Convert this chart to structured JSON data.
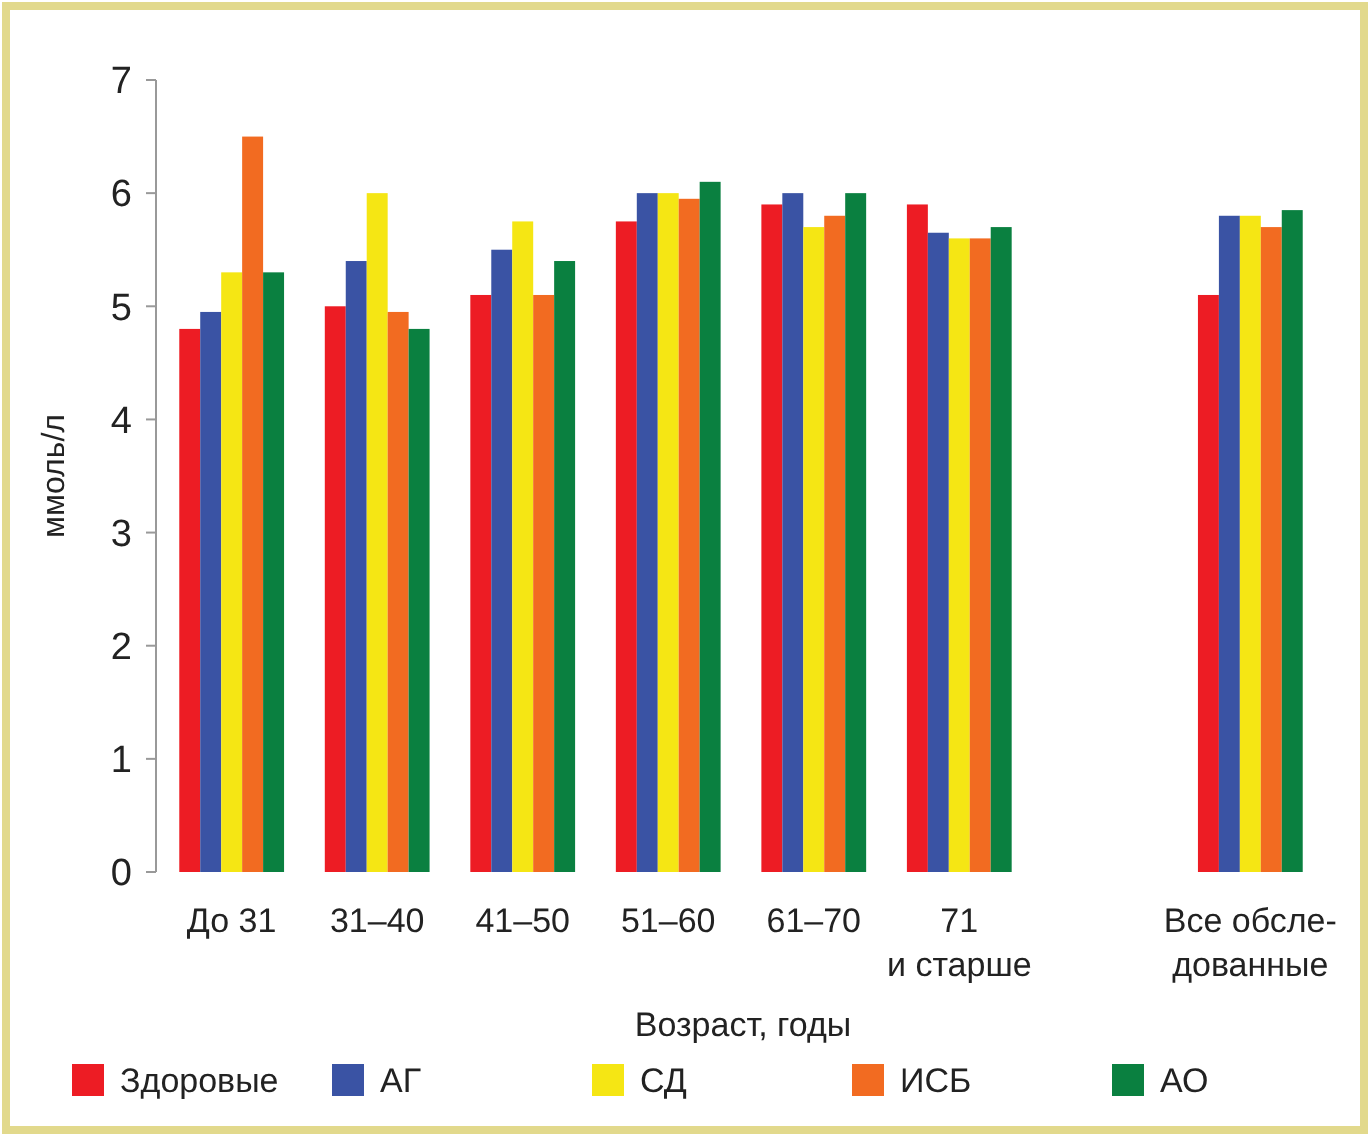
{
  "chart_data": {
    "type": "bar",
    "xlabel": "Возраст, годы",
    "ylabel": "ммоль/л",
    "categories": [
      "До 31",
      "31–40",
      "41–50",
      "51–60",
      "61–70",
      "71\nи старше",
      null,
      "Все обсле-\nдованные"
    ],
    "series": [
      {
        "name": "Здоровые",
        "color": "#ed1c24",
        "values": [
          4.8,
          5.0,
          5.1,
          5.75,
          5.9,
          5.9,
          null,
          5.1
        ]
      },
      {
        "name": "АГ",
        "color": "#3a53a4",
        "values": [
          4.95,
          5.4,
          5.5,
          6.0,
          6.0,
          5.65,
          null,
          5.8
        ]
      },
      {
        "name": "СД",
        "color": "#f5e614",
        "values": [
          5.3,
          6.0,
          5.75,
          6.0,
          5.7,
          5.6,
          null,
          5.8
        ]
      },
      {
        "name": "ИСБ",
        "color": "#f26b21",
        "values": [
          6.5,
          4.95,
          5.1,
          5.95,
          5.8,
          5.6,
          null,
          5.7
        ]
      },
      {
        "name": "АО",
        "color": "#0a8040",
        "values": [
          5.3,
          4.8,
          5.4,
          6.1,
          6.0,
          5.7,
          null,
          5.85
        ]
      }
    ],
    "ylim": [
      0,
      7
    ],
    "yticks": [
      0,
      1,
      2,
      3,
      4,
      5,
      6,
      7
    ],
    "grid": false,
    "legend": "bottom"
  }
}
